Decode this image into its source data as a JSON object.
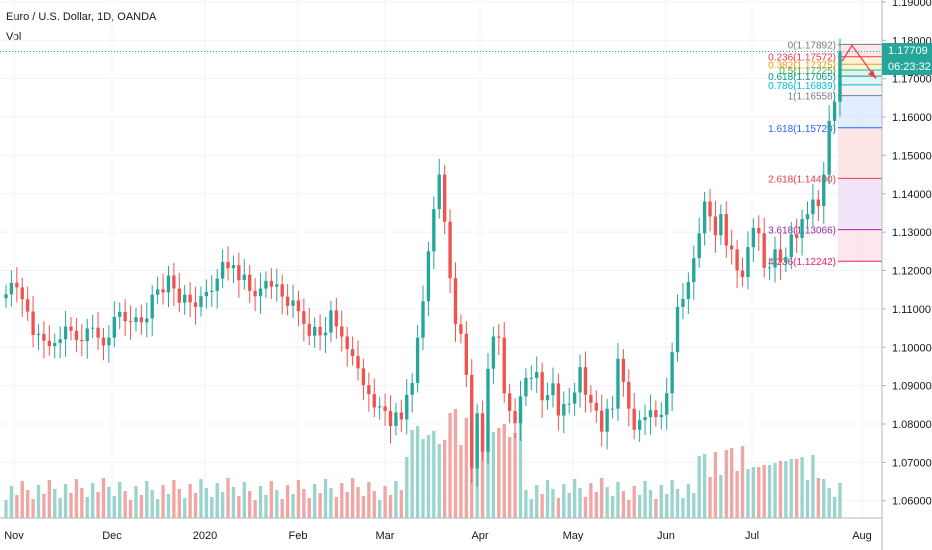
{
  "header": {
    "symbol_title": "Euro / U.S. Dollar, 1D, OANDA",
    "indicator": "Vol"
  },
  "price_axis": {
    "ticks": [
      "1.19000",
      "1.18000",
      "1.17000",
      "1.16000",
      "1.15000",
      "1.14000",
      "1.13000",
      "1.12000",
      "1.11000",
      "1.10000",
      "1.09000",
      "1.08000",
      "1.07000",
      "1.06000"
    ],
    "last_price": "1.17709",
    "countdown": "06:23:32",
    "last_price_color": "#26a69a",
    "countdown_color": "#26a69a"
  },
  "time_axis": {
    "labels": [
      "Nov",
      "Dec",
      "2020",
      "Feb",
      "Mar",
      "Apr",
      "May",
      "Jun",
      "Jul",
      "Aug"
    ]
  },
  "colors": {
    "up": "#26a69a",
    "down": "#ef5350",
    "vol_up": "#9bd4cc",
    "vol_down": "#f2a6a4"
  },
  "fibonacci": {
    "levels": [
      {
        "label": "0(1.17892)",
        "value": 1.17892,
        "color": "#787b86"
      },
      {
        "label": "0.236(1.17572)",
        "value": 1.17572,
        "color": "#f23645"
      },
      {
        "label": "0.382(1.17375)",
        "value": 1.17375,
        "color": "#ff9800"
      },
      {
        "label": "0.5(1.17225)",
        "value": 1.17225,
        "color": "#4caf50"
      },
      {
        "label": "0.618(1.17065)",
        "value": 1.17065,
        "color": "#089981"
      },
      {
        "label": "0.786(1.16839)",
        "value": 1.16839,
        "color": "#00bcd4"
      },
      {
        "label": "1(1.16558)",
        "value": 1.16558,
        "color": "#787b86"
      },
      {
        "label": "1.618(1.15720)",
        "value": 1.1572,
        "color": "#2962ff"
      },
      {
        "label": "2.618(1.14400)",
        "value": 1.144,
        "color": "#f23645"
      },
      {
        "label": "3.618(1.13066)",
        "value": 1.13066,
        "color": "#9c27b0"
      },
      {
        "label": "4.236(1.12242)",
        "value": 1.12242,
        "color": "#e91e63"
      }
    ]
  },
  "chart_data": {
    "type": "candlestick",
    "title": "Euro / U.S. Dollar, 1D, OANDA",
    "ylim": [
      1.0555,
      1.1905
    ],
    "y_ticks": [
      1.19,
      1.18,
      1.17,
      1.16,
      1.15,
      1.14,
      1.13,
      1.12,
      1.11,
      1.1,
      1.09,
      1.08,
      1.07,
      1.06
    ],
    "x_labels": [
      "Nov",
      "Dec",
      "2020",
      "Feb",
      "Mar",
      "Apr",
      "May",
      "Jun",
      "Jul",
      "Aug"
    ],
    "close": [
      1.1138,
      1.1168,
      1.1156,
      1.1125,
      1.1093,
      1.1032,
      1.1035,
      1.1017,
      1.1003,
      1.1011,
      1.1021,
      1.1054,
      1.1043,
      1.1019,
      1.1016,
      1.1049,
      1.1051,
      1.1025,
      1.1005,
      1.1025,
      1.1079,
      1.1092,
      1.1068,
      1.1066,
      1.1078,
      1.1065,
      1.1075,
      1.1137,
      1.1151,
      1.1143,
      1.1187,
      1.1153,
      1.1116,
      1.1137,
      1.1117,
      1.1105,
      1.1133,
      1.1144,
      1.1147,
      1.1179,
      1.1222,
      1.1206,
      1.1214,
      1.1175,
      1.1189,
      1.1147,
      1.1133,
      1.1153,
      1.1173,
      1.1158,
      1.1164,
      1.1132,
      1.1108,
      1.1122,
      1.1094,
      1.1061,
      1.103,
      1.1053,
      1.1031,
      1.1038,
      1.1096,
      1.1054,
      1.1028,
      1.0995,
      1.0977,
      1.0945,
      1.0901,
      1.0878,
      1.0843,
      1.0846,
      1.0834,
      1.0795,
      1.083,
      1.0812,
      1.0876,
      1.0907,
      1.1025,
      1.112,
      1.125,
      1.136,
      1.145,
      1.1327,
      1.118,
      1.106,
      1.1035,
      1.0928,
      1.0684,
      1.0828,
      1.0728,
      1.0944,
      1.1028,
      1.1025,
      1.088,
      1.0834,
      1.0802,
      1.0872,
      1.092,
      1.092,
      1.0935,
      1.0862,
      1.0875,
      1.0906,
      1.0822,
      1.0852,
      1.0853,
      1.0882,
      1.0948,
      1.0876,
      1.0855,
      1.0835,
      1.078,
      1.084,
      1.084,
      1.097,
      1.091,
      1.084,
      1.0785,
      1.081,
      1.0818,
      1.0836,
      1.0818,
      1.0824,
      1.088,
      1.0987,
      1.1105,
      1.1126,
      1.117,
      1.1232,
      1.1297,
      1.138,
      1.1341,
      1.1292,
      1.1347,
      1.1265,
      1.1255,
      1.12,
      1.1183,
      1.1261,
      1.1311,
      1.1297,
      1.1207,
      1.1208,
      1.1255,
      1.1221,
      1.1235,
      1.1294,
      1.1285,
      1.1334,
      1.1347,
      1.1385,
      1.1368,
      1.145,
      1.159,
      1.164,
      1.1771
    ]
  }
}
